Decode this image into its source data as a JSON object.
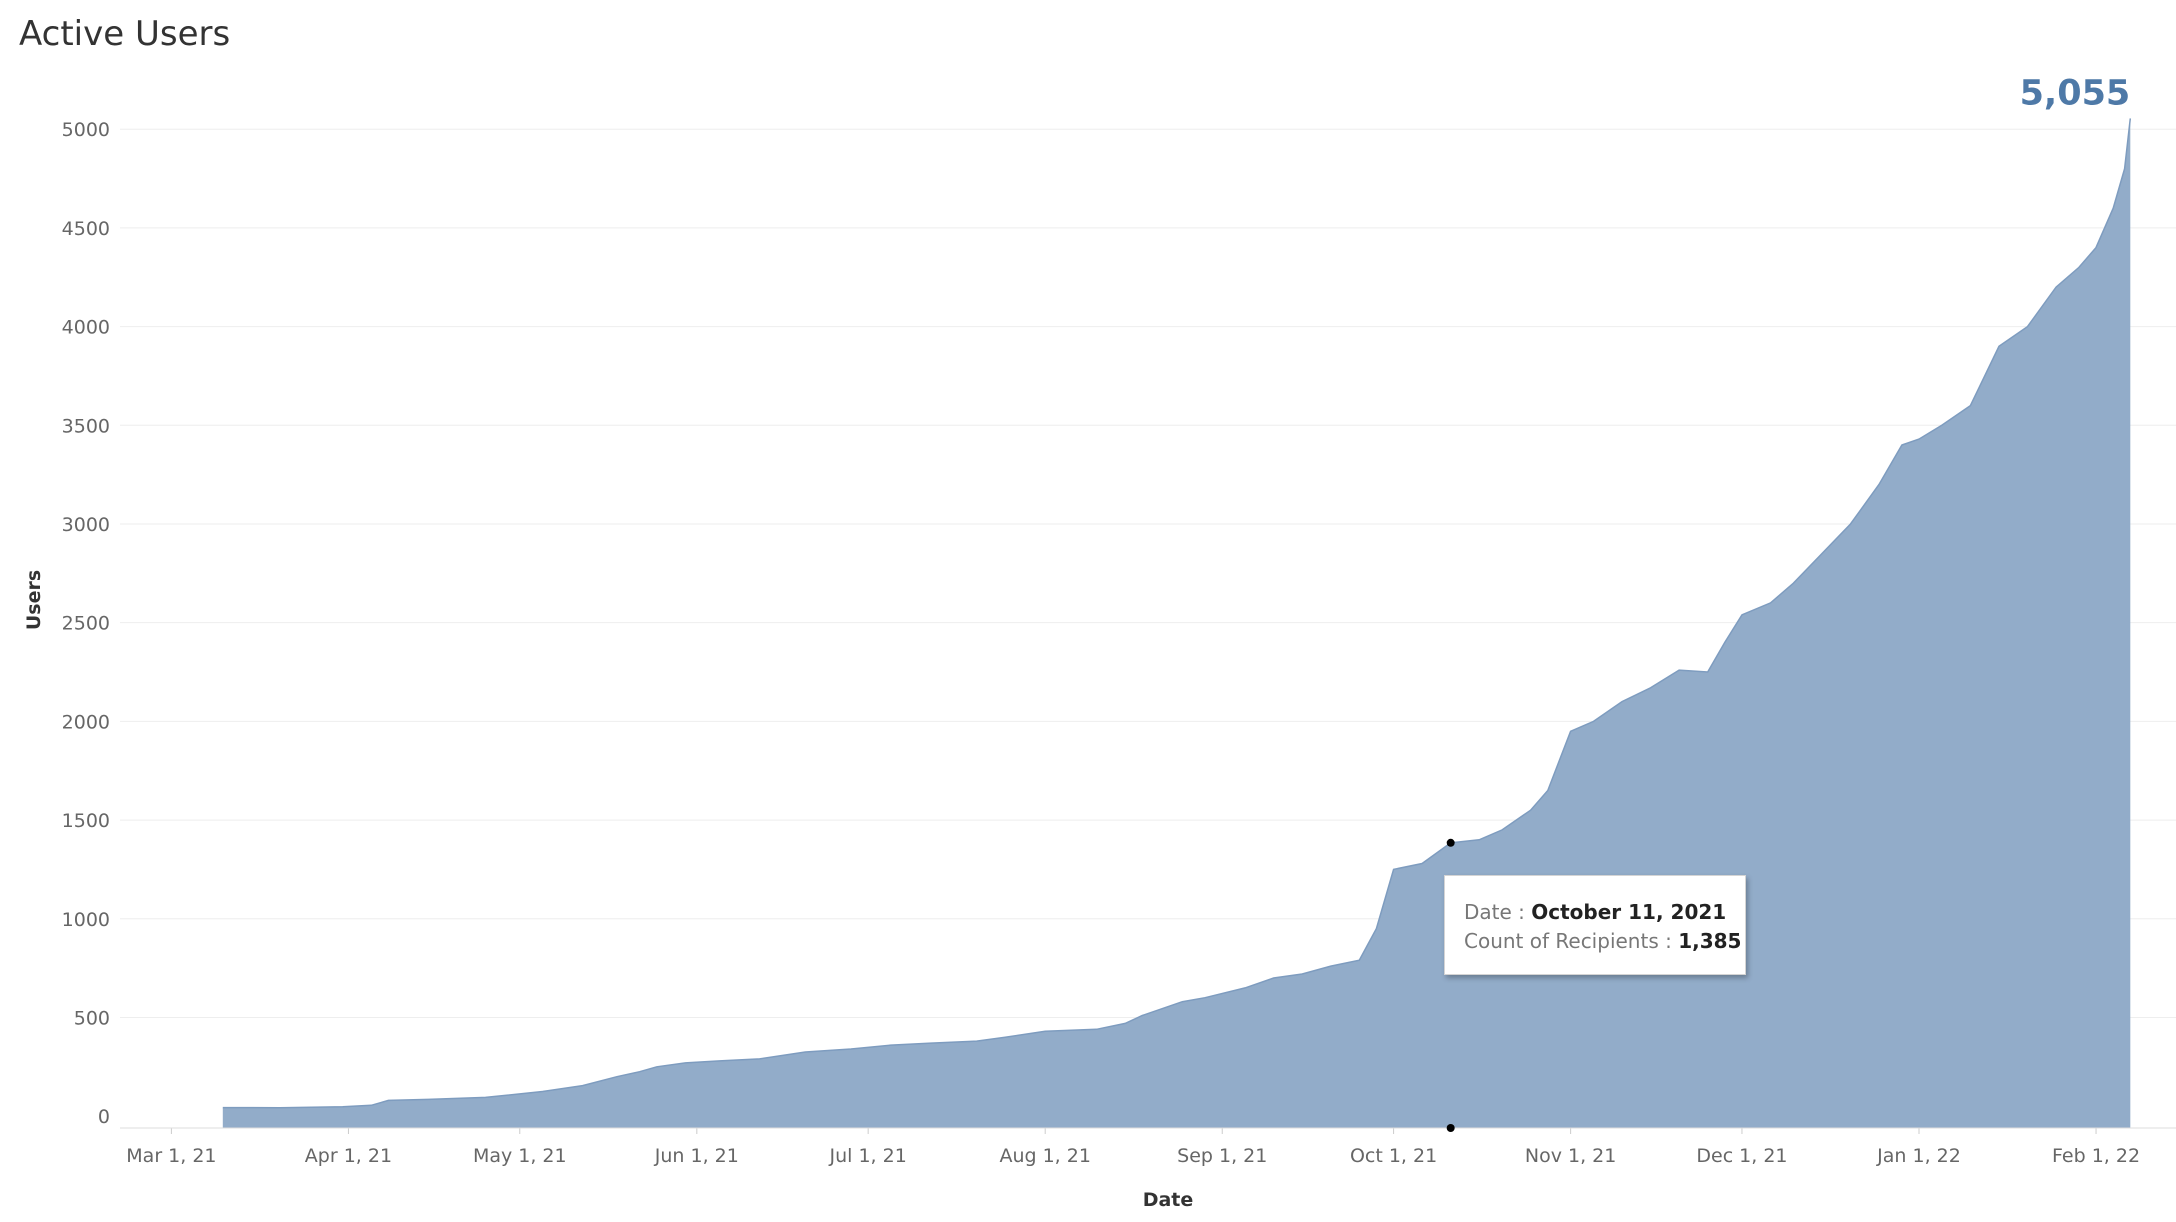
{
  "chart_data": {
    "type": "area",
    "title": "Active Users",
    "xlabel": "Date",
    "ylabel": "Users",
    "x_ticks": [
      "Mar 1, 21",
      "Apr 1, 21",
      "May 1, 21",
      "Jun 1, 21",
      "Jul 1, 21",
      "Aug 1, 21",
      "Sep 1, 21",
      "Oct 1, 21",
      "Nov 1, 21",
      "Dec 1, 21",
      "Jan 1, 22",
      "Feb 1, 22"
    ],
    "y_ticks": [
      "5000",
      "4500",
      "4000",
      "3500",
      "3000",
      "2500",
      "2000",
      "1500",
      "1000",
      "500",
      "0"
    ],
    "ylim": [
      -60,
      5300
    ],
    "xlim": [
      "2021-02-20",
      "2022-02-15"
    ],
    "grid": true,
    "colors": {
      "area": "#92acc9",
      "line": "#7e9cbf",
      "end_label": "#4e79a7"
    },
    "series": [
      {
        "x": [
          "2021-03-10",
          "2021-03-20",
          "2021-03-31",
          "2021-04-05",
          "2021-04-08",
          "2021-04-15",
          "2021-04-25",
          "2021-05-05",
          "2021-05-12",
          "2021-05-18",
          "2021-05-22",
          "2021-05-25",
          "2021-05-30",
          "2021-06-05",
          "2021-06-12",
          "2021-06-20",
          "2021-06-28",
          "2021-07-05",
          "2021-07-12",
          "2021-07-20",
          "2021-07-25",
          "2021-08-01",
          "2021-08-10",
          "2021-08-15",
          "2021-08-18",
          "2021-08-25",
          "2021-08-29",
          "2021-09-05",
          "2021-09-10",
          "2021-09-15",
          "2021-09-20",
          "2021-09-25",
          "2021-09-28",
          "2021-10-01",
          "2021-10-06",
          "2021-10-11",
          "2021-10-16",
          "2021-10-20",
          "2021-10-25",
          "2021-10-28",
          "2021-11-01",
          "2021-11-05",
          "2021-11-10",
          "2021-11-15",
          "2021-11-20",
          "2021-11-25",
          "2021-11-28",
          "2021-12-01",
          "2021-12-06",
          "2021-12-10",
          "2021-12-15",
          "2021-12-20",
          "2021-12-25",
          "2021-12-29",
          "2022-01-01",
          "2022-01-05",
          "2022-01-10",
          "2022-01-15",
          "2022-01-20",
          "2022-01-25",
          "2022-01-29",
          "2022-02-01",
          "2022-02-04",
          "2022-02-06",
          "2022-02-07"
        ],
        "y": [
          43,
          43,
          48,
          55,
          80,
          85,
          95,
          125,
          155,
          200,
          225,
          250,
          270,
          280,
          290,
          325,
          340,
          360,
          370,
          380,
          400,
          430,
          440,
          470,
          510,
          580,
          600,
          650,
          700,
          720,
          760,
          790,
          950,
          1250,
          1280,
          1385,
          1400,
          1450,
          1550,
          1650,
          1950,
          2000,
          2100,
          2170,
          2260,
          2250,
          2400,
          2540,
          2600,
          2700,
          2850,
          3000,
          3200,
          3400,
          3430,
          3500,
          3600,
          3900,
          4000,
          4200,
          4300,
          4400,
          4600,
          4800,
          5055
        ]
      }
    ],
    "end_label": "5,055",
    "tooltip": {
      "date_label": "Date :",
      "date_value": "October 11, 2021",
      "count_label": "Count of Recipients :",
      "count_value": "1,385",
      "x": "2021-10-11",
      "y": 1385
    }
  }
}
